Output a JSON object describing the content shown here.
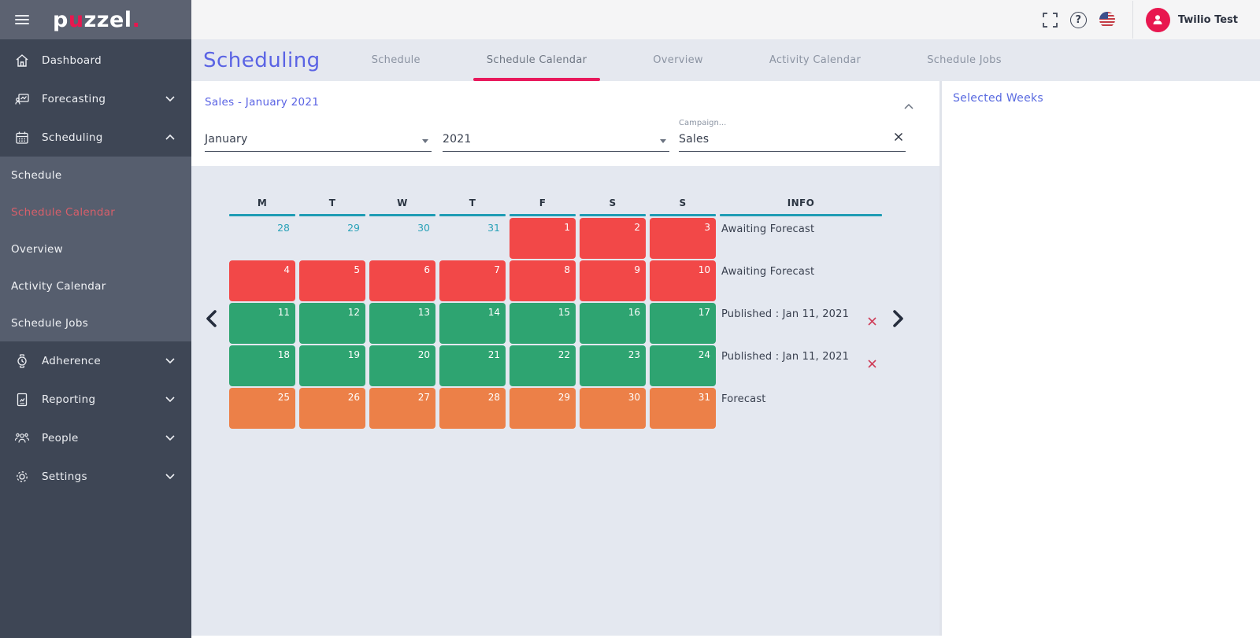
{
  "app": {
    "logo_text": "puzzel",
    "logo_accent_letter": "u",
    "logo_accent_dot": "."
  },
  "topbar": {
    "user_name": "Twilio Test",
    "help_glyph": "?"
  },
  "sidebar": {
    "items": [
      {
        "label": "Dashboard",
        "icon": "home-icon",
        "expandable": false
      },
      {
        "label": "Forecasting",
        "icon": "forecasting-icon",
        "expandable": true,
        "state": "collapsed"
      },
      {
        "label": "Scheduling",
        "icon": "calendar-icon",
        "expandable": true,
        "state": "expanded"
      },
      {
        "label": "Adherence",
        "icon": "watch-icon",
        "expandable": true,
        "state": "collapsed"
      },
      {
        "label": "Reporting",
        "icon": "report-icon",
        "expandable": true,
        "state": "collapsed"
      },
      {
        "label": "People",
        "icon": "people-icon",
        "expandable": true,
        "state": "collapsed"
      },
      {
        "label": "Settings",
        "icon": "gear-icon",
        "expandable": true,
        "state": "collapsed"
      }
    ],
    "scheduling_submenu": [
      {
        "label": "Schedule",
        "active": false
      },
      {
        "label": "Schedule Calendar",
        "active": true
      },
      {
        "label": "Overview",
        "active": false
      },
      {
        "label": "Activity Calendar",
        "active": false
      },
      {
        "label": "Schedule Jobs",
        "active": false
      }
    ]
  },
  "header": {
    "title": "Scheduling",
    "tabs": [
      {
        "label": "Schedule",
        "active": false
      },
      {
        "label": "Schedule Calendar",
        "active": true
      },
      {
        "label": "Overview",
        "active": false
      },
      {
        "label": "Activity Calendar",
        "active": false
      },
      {
        "label": "Schedule Jobs",
        "active": false
      }
    ]
  },
  "filter": {
    "panel_title": "Sales - January 2021",
    "month": {
      "value": "January"
    },
    "year": {
      "value": "2021"
    },
    "campaign": {
      "label": "Campaign...",
      "value": "Sales"
    }
  },
  "right_panel": {
    "title": "Selected Weeks"
  },
  "calendar": {
    "day_headers": [
      "M",
      "T",
      "W",
      "T",
      "F",
      "S",
      "S",
      "INFO"
    ],
    "weeks": [
      {
        "info": "Awaiting Forecast",
        "deletable": false,
        "days": [
          {
            "num": "28",
            "type": "outside"
          },
          {
            "num": "29",
            "type": "outside"
          },
          {
            "num": "30",
            "type": "outside"
          },
          {
            "num": "31",
            "type": "outside"
          },
          {
            "num": "1",
            "type": "awaiting"
          },
          {
            "num": "2",
            "type": "awaiting"
          },
          {
            "num": "3",
            "type": "awaiting"
          }
        ]
      },
      {
        "info": "Awaiting Forecast",
        "deletable": false,
        "days": [
          {
            "num": "4",
            "type": "awaiting"
          },
          {
            "num": "5",
            "type": "awaiting"
          },
          {
            "num": "6",
            "type": "awaiting"
          },
          {
            "num": "7",
            "type": "awaiting"
          },
          {
            "num": "8",
            "type": "awaiting"
          },
          {
            "num": "9",
            "type": "awaiting"
          },
          {
            "num": "10",
            "type": "awaiting"
          }
        ]
      },
      {
        "info": "Published : Jan 11, 2021",
        "deletable": true,
        "days": [
          {
            "num": "11",
            "type": "published"
          },
          {
            "num": "12",
            "type": "published"
          },
          {
            "num": "13",
            "type": "published"
          },
          {
            "num": "14",
            "type": "published"
          },
          {
            "num": "15",
            "type": "published"
          },
          {
            "num": "16",
            "type": "published"
          },
          {
            "num": "17",
            "type": "published"
          }
        ]
      },
      {
        "info": "Published : Jan 11, 2021",
        "deletable": true,
        "days": [
          {
            "num": "18",
            "type": "published"
          },
          {
            "num": "19",
            "type": "published"
          },
          {
            "num": "20",
            "type": "published"
          },
          {
            "num": "21",
            "type": "published"
          },
          {
            "num": "22",
            "type": "published"
          },
          {
            "num": "23",
            "type": "published"
          },
          {
            "num": "24",
            "type": "published"
          }
        ]
      },
      {
        "info": "Forecast",
        "deletable": false,
        "days": [
          {
            "num": "25",
            "type": "forecast"
          },
          {
            "num": "26",
            "type": "forecast"
          },
          {
            "num": "27",
            "type": "forecast"
          },
          {
            "num": "28",
            "type": "forecast"
          },
          {
            "num": "29",
            "type": "forecast"
          },
          {
            "num": "30",
            "type": "forecast"
          },
          {
            "num": "31",
            "type": "forecast"
          }
        ]
      }
    ]
  },
  "colors": {
    "accent_pink": "#e8174f",
    "title_blue": "#5a63e4",
    "header_teal": "#1f9cb4",
    "awaiting_red": "#f24848",
    "published_green": "#2ea471",
    "forecast_orange": "#ec8048",
    "delete_red": "#cf3d58",
    "sidebar_bg": "#3e4655",
    "submenu_bg": "#565e6e",
    "calendar_bg": "#e4e8f0"
  }
}
